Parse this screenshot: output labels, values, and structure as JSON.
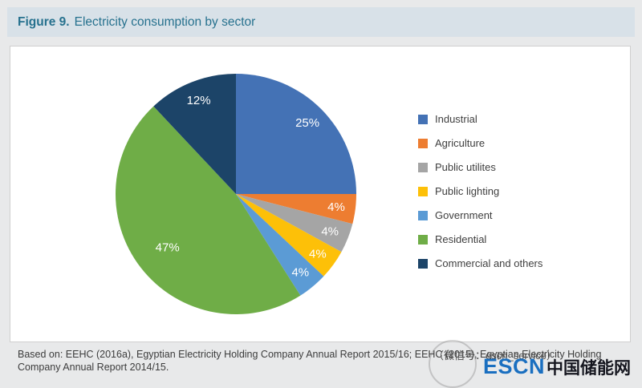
{
  "header": {
    "figure_label": "Figure 9.",
    "title": "Electricity consumption by sector"
  },
  "chart_data": {
    "type": "pie",
    "title": "Electricity consumption by sector",
    "start_angle_deg": 0,
    "direction": "clockwise",
    "legend_position": "right",
    "slices": [
      {
        "label": "Industrial",
        "value": 25,
        "pct_label": "25%",
        "color": "#4472b5"
      },
      {
        "label": "Agriculture",
        "value": 4,
        "pct_label": "4%",
        "color": "#ed7d31"
      },
      {
        "label": "Public utilites",
        "value": 4,
        "pct_label": "4%",
        "color": "#a5a5a5"
      },
      {
        "label": "Public lighting",
        "value": 4,
        "pct_label": "4%",
        "color": "#fdc008"
      },
      {
        "label": "Government",
        "value": 4,
        "pct_label": "4%",
        "color": "#5b9bd5"
      },
      {
        "label": "Residential",
        "value": 47,
        "pct_label": "47%",
        "color": "#6fad47"
      },
      {
        "label": "Commercial and others",
        "value": 12,
        "pct_label": "12%",
        "color": "#1c4468"
      }
    ]
  },
  "caption": {
    "line1": "Based on: EEHC (2016a), Egyptian Electricity Holding Company Annual Report 2015/16; EEHC (2015), Egyptian Electricity Holding",
    "line2": "Company Annual Report 2014/15."
  },
  "watermark": {
    "wechat_text": "（微信号：escn_service）"
  },
  "logo": {
    "escn": "ESCN",
    "cn_name": "中国储能网"
  }
}
